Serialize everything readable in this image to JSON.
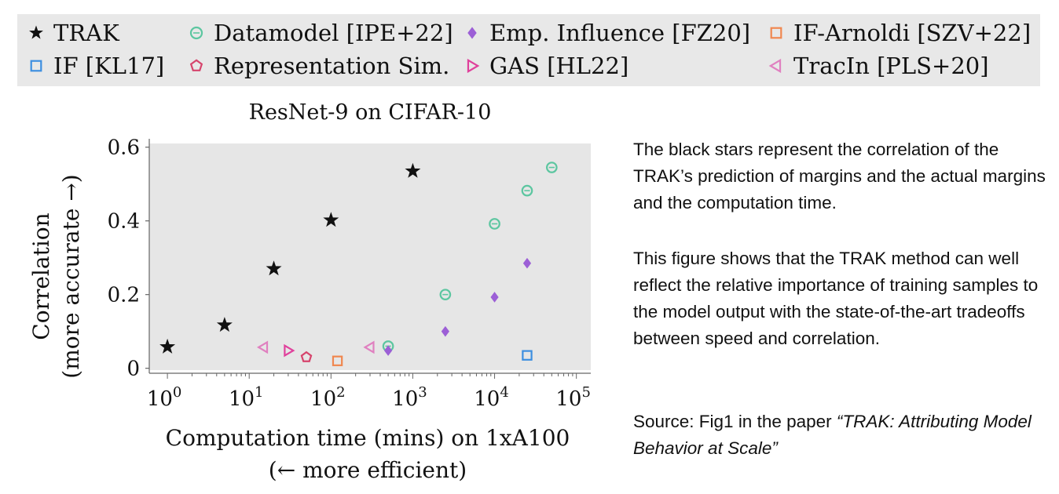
{
  "legend": {
    "items": [
      {
        "label": "TRAK",
        "marker": "star",
        "color": "#111111"
      },
      {
        "label": "Datamodel [IPE+22]",
        "marker": "circle",
        "color": "#5cc6a0"
      },
      {
        "label": "Emp. Influence [FZ20]",
        "marker": "diamond",
        "color": "#9c5fd6"
      },
      {
        "label": "IF-Arnoldi [SZV+22]",
        "marker": "square",
        "color": "#f0874f"
      },
      {
        "label": "IF [KL17]",
        "marker": "square",
        "color": "#3d8fe0"
      },
      {
        "label": "Representation Sim.",
        "marker": "pentagon",
        "color": "#d6446c"
      },
      {
        "label": "GAS [HL22]",
        "marker": "triangle-right",
        "color": "#e0409c"
      },
      {
        "label": "TracIn [PLS+20]",
        "marker": "triangle-left",
        "color": "#e080c0"
      }
    ]
  },
  "chart_data": {
    "type": "scatter",
    "title": "ResNet-9 on CIFAR-10",
    "xlabel_line1": "Computation time (mins) on 1xA100",
    "xlabel_line2": "(← more efficient)",
    "ylabel_line1": "Correlation",
    "ylabel_line2": "(more accurate →)",
    "x_scale": "log",
    "xlim": [
      0.6,
      150000
    ],
    "ylim": [
      -0.005,
      0.61
    ],
    "x_ticks": [
      {
        "value": 1,
        "exp": "0"
      },
      {
        "value": 10,
        "exp": "1"
      },
      {
        "value": 100,
        "exp": "2"
      },
      {
        "value": 1000,
        "exp": "3"
      },
      {
        "value": 10000,
        "exp": "4"
      },
      {
        "value": 100000,
        "exp": "5"
      }
    ],
    "x_tick_base": "10",
    "y_ticks": [
      {
        "value": 0,
        "label": "0"
      },
      {
        "value": 0.2,
        "label": "0.2"
      },
      {
        "value": 0.4,
        "label": "0.4"
      },
      {
        "value": 0.6,
        "label": "0.6"
      }
    ],
    "grid": false,
    "legend_position": "top",
    "series": [
      {
        "name": "TRAK",
        "marker": "star",
        "color": "#111111",
        "points": [
          {
            "x": 1,
            "y": 0.058
          },
          {
            "x": 5,
            "y": 0.117
          },
          {
            "x": 20,
            "y": 0.27
          },
          {
            "x": 100,
            "y": 0.402
          },
          {
            "x": 1000,
            "y": 0.535
          }
        ]
      },
      {
        "name": "Datamodel [IPE+22]",
        "marker": "circle",
        "color": "#5cc6a0",
        "points": [
          {
            "x": 500,
            "y": 0.06
          },
          {
            "x": 2500,
            "y": 0.2
          },
          {
            "x": 10000,
            "y": 0.392
          },
          {
            "x": 25000,
            "y": 0.482
          },
          {
            "x": 50000,
            "y": 0.545
          }
        ]
      },
      {
        "name": "Emp. Influence [FZ20]",
        "marker": "diamond",
        "color": "#9c5fd6",
        "points": [
          {
            "x": 500,
            "y": 0.048
          },
          {
            "x": 2500,
            "y": 0.1
          },
          {
            "x": 10000,
            "y": 0.193
          },
          {
            "x": 25000,
            "y": 0.285
          }
        ]
      },
      {
        "name": "IF-Arnoldi [SZV+22]",
        "marker": "square",
        "color": "#f0874f",
        "points": [
          {
            "x": 120,
            "y": 0.02
          }
        ]
      },
      {
        "name": "IF [KL17]",
        "marker": "square",
        "color": "#3d8fe0",
        "points": [
          {
            "x": 25000,
            "y": 0.035
          }
        ]
      },
      {
        "name": "Representation Sim.",
        "marker": "pentagon",
        "color": "#d6446c",
        "points": [
          {
            "x": 50,
            "y": 0.03
          }
        ]
      },
      {
        "name": "GAS [HL22]",
        "marker": "triangle-right",
        "color": "#e0409c",
        "points": [
          {
            "x": 30,
            "y": 0.048
          }
        ]
      },
      {
        "name": "TracIn [PLS+20]",
        "marker": "triangle-left",
        "color": "#e080c0",
        "points": [
          {
            "x": 15,
            "y": 0.057
          },
          {
            "x": 300,
            "y": 0.057
          }
        ]
      }
    ]
  },
  "side": {
    "para1": "The black stars represent the correlation of the TRAK’s prediction of margins and the actual margins and the computation time.",
    "para2": "This figure shows that the TRAK method can well reflect the relative importance of training samples to the model output with the state-of-the-art tradeoffs between speed and correlation.",
    "source_prefix": "Source: Fig1 in the paper ",
    "source_title": "“TRAK: Attributing Model Behavior at Scale”"
  }
}
